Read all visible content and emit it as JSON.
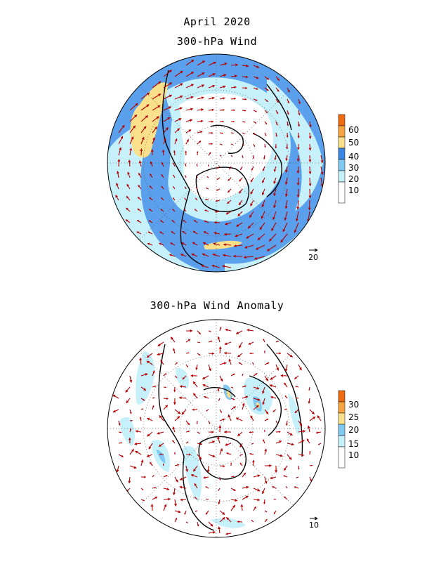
{
  "titles": {
    "month": "April 2020",
    "panel1": "300-hPa Wind",
    "panel2": "300-hPa Wind Anomaly"
  },
  "panel1": {
    "colorbar": {
      "labels": [
        "10",
        "20",
        "30",
        "40",
        "50",
        "60"
      ],
      "colors": [
        "#ffffff",
        "#c6f0fa",
        "#7fc8f2",
        "#3a86e6",
        "#fae08a",
        "#f7a540",
        "#ef6a10"
      ]
    },
    "reference_vector": "20"
  },
  "panel2": {
    "colorbar": {
      "labels": [
        "10",
        "15",
        "20",
        "25",
        "30"
      ],
      "colors": [
        "#ffffff",
        "#c6f0fa",
        "#7fc8f2",
        "#fae08a",
        "#f7a540",
        "#ef6a10"
      ]
    },
    "reference_vector": "10"
  },
  "colors": {
    "arrows": "#b40000",
    "coast": "#000000",
    "grid": "#555555"
  }
}
